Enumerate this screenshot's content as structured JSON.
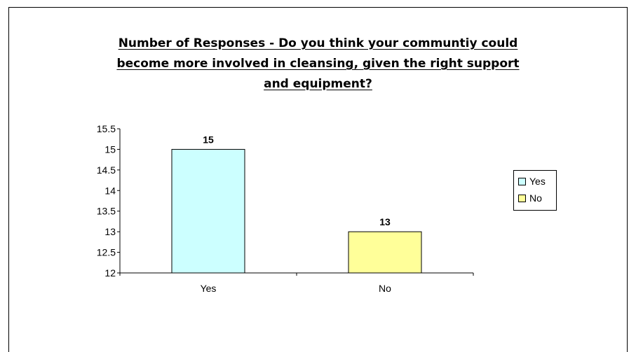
{
  "chart_data": {
    "type": "bar",
    "title_lines": [
      "Number of Responses - Do you think your communtiy could",
      "become more involved in cleansing, given the right support",
      "and equipment?"
    ],
    "categories": [
      "Yes",
      "No"
    ],
    "values": [
      15,
      13
    ],
    "data_labels": [
      "15",
      "13"
    ],
    "ylim": [
      12,
      15.5
    ],
    "yticks": [
      "12",
      "12.5",
      "13",
      "13.5",
      "14",
      "14.5",
      "15",
      "15.5"
    ],
    "ytick_values": [
      12,
      12.5,
      13,
      13.5,
      14,
      14.5,
      15,
      15.5
    ],
    "xlabel": "",
    "ylabel": "",
    "grid": false,
    "legend_position": "right",
    "legend": [
      {
        "label": "Yes",
        "color": "#CCFFFF"
      },
      {
        "label": "No",
        "color": "#FFFF99"
      }
    ],
    "bar_colors": [
      "#CCFFFF",
      "#FFFF99"
    ]
  }
}
